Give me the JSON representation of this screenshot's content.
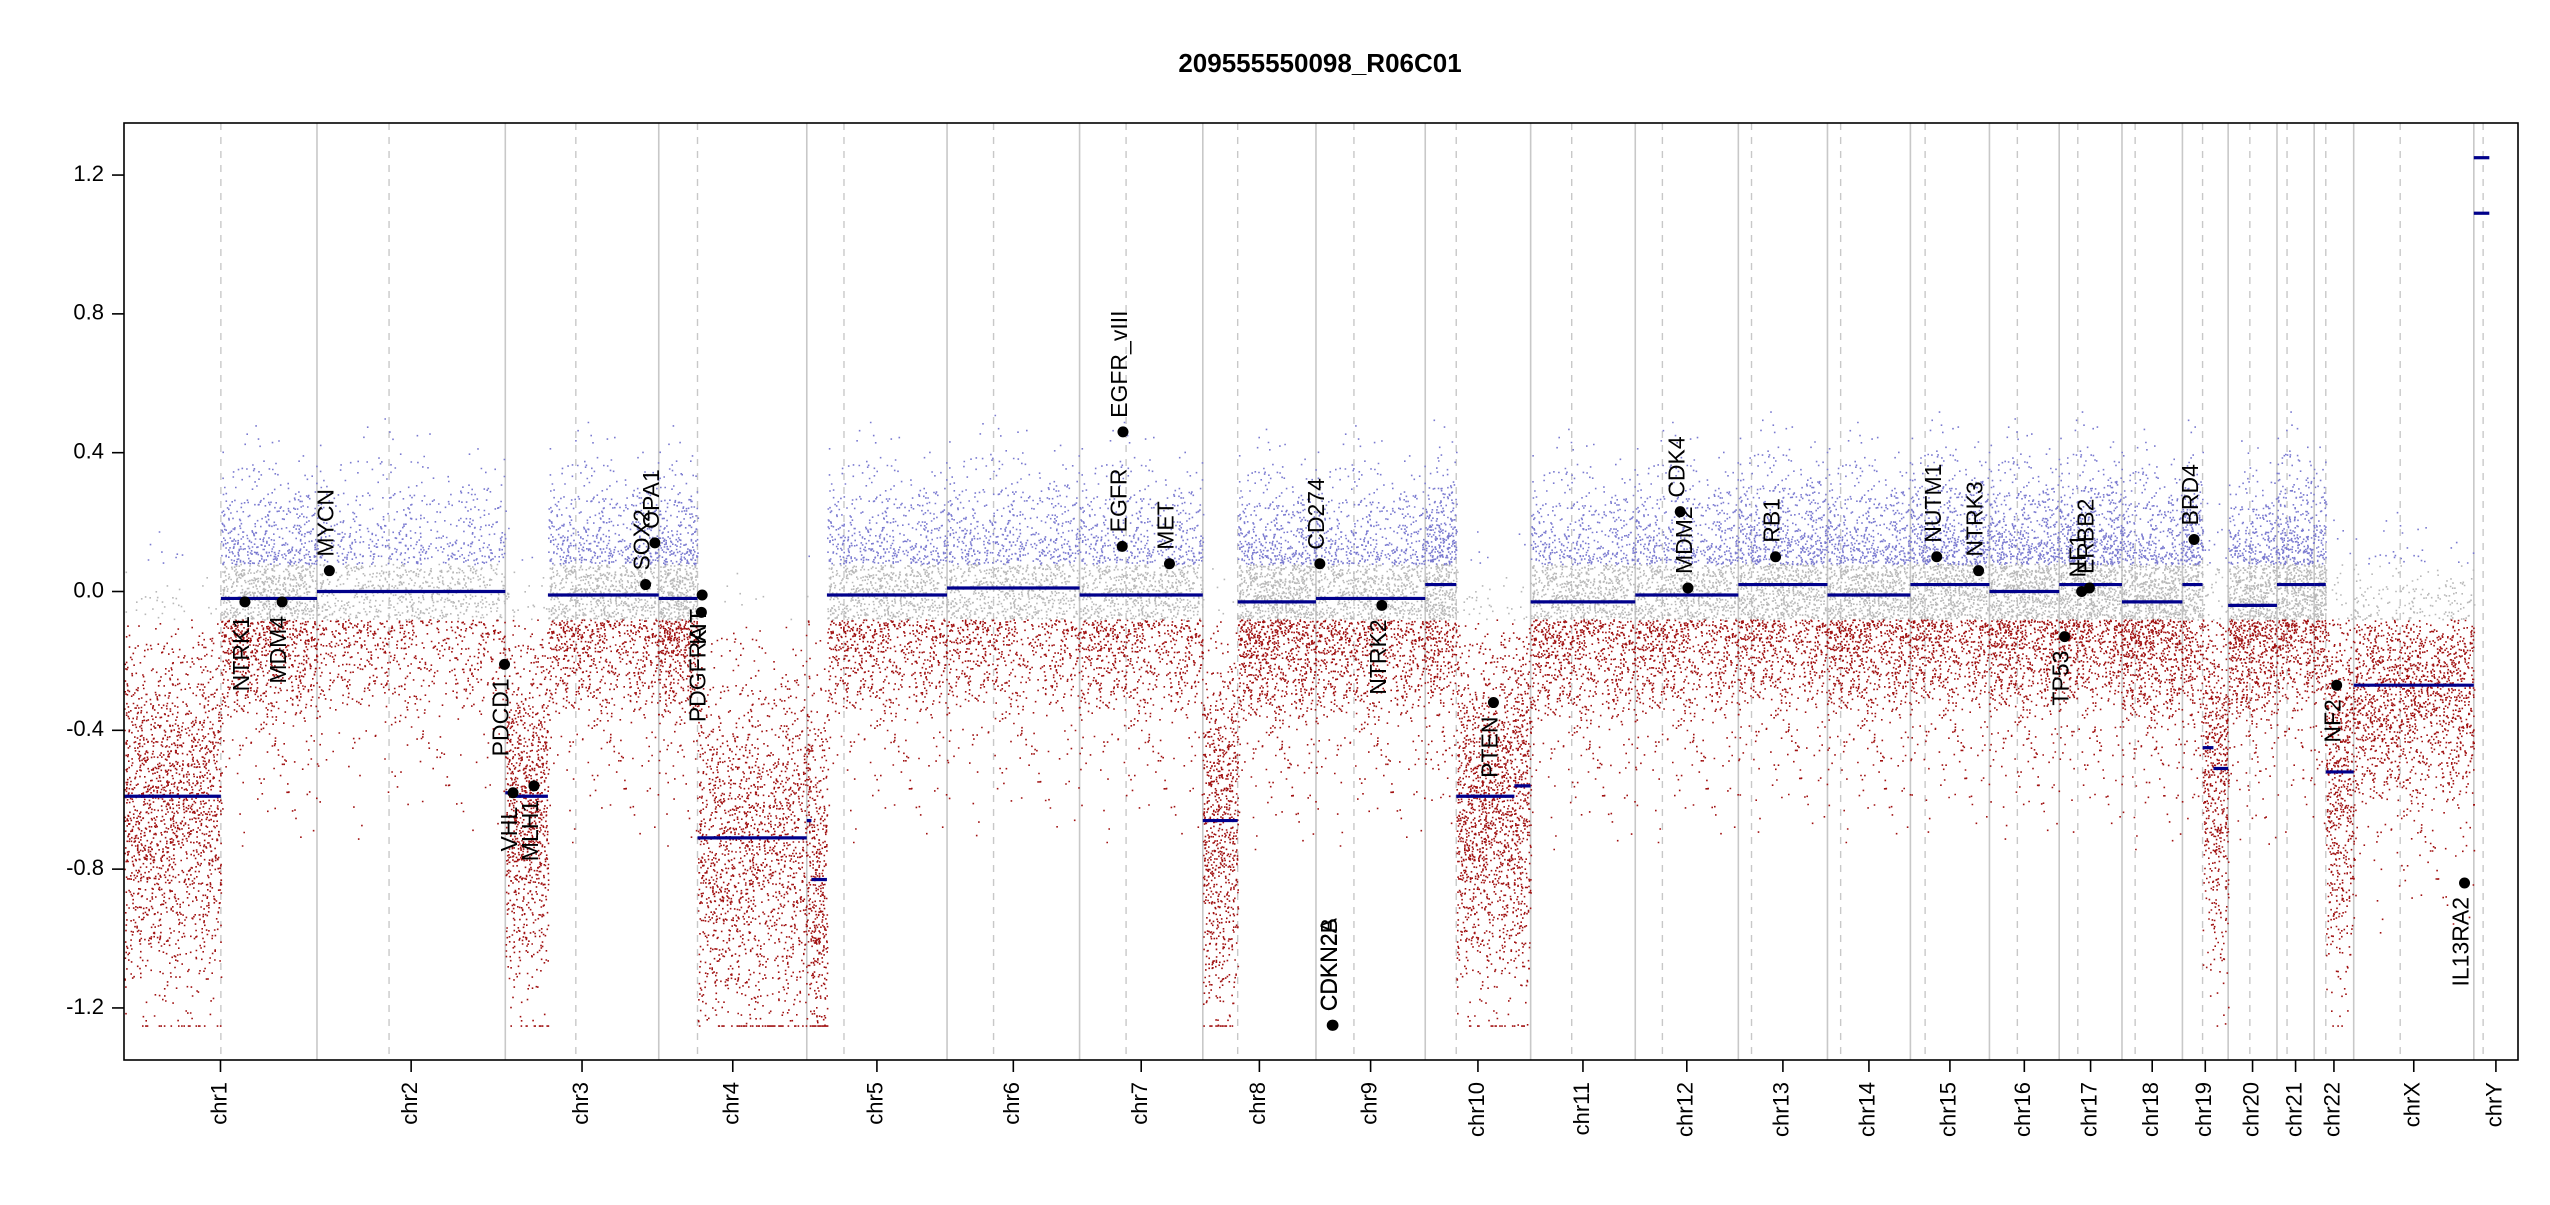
{
  "chart_data": {
    "type": "scatter",
    "title": "209555550098_R06C01",
    "xlabel": "",
    "ylabel": "",
    "ylim": [
      -1.35,
      1.35
    ],
    "yticks": [
      "1.2",
      "0.8",
      "0.4",
      "0.0",
      "-0.4",
      "-0.8",
      "-1.2"
    ],
    "grid": false,
    "legend": "none",
    "colors": {
      "gain_points": "#7a7ad0",
      "neutral_points": "#b8b8b8",
      "loss_points": "#a01010",
      "segment": "#00008b",
      "gene_point": "#000000",
      "chromosome_border": "#c8c8c8",
      "centromere": "#c8c8c8"
    },
    "chromosomes": [
      {
        "name": "chr1",
        "size": 249,
        "cen": 125
      },
      {
        "name": "chr2",
        "size": 243,
        "cen": 93
      },
      {
        "name": "chr3",
        "size": 198,
        "cen": 91
      },
      {
        "name": "chr4",
        "size": 191,
        "cen": 50
      },
      {
        "name": "chr5",
        "size": 181,
        "cen": 48
      },
      {
        "name": "chr6",
        "size": 171,
        "cen": 60
      },
      {
        "name": "chr7",
        "size": 159,
        "cen": 60
      },
      {
        "name": "chr8",
        "size": 146,
        "cen": 45
      },
      {
        "name": "chr9",
        "size": 141,
        "cen": 49
      },
      {
        "name": "chr10",
        "size": 136,
        "cen": 40
      },
      {
        "name": "chr11",
        "size": 135,
        "cen": 53
      },
      {
        "name": "chr12",
        "size": 133,
        "cen": 35
      },
      {
        "name": "chr13",
        "size": 115,
        "cen": 17
      },
      {
        "name": "chr14",
        "size": 107,
        "cen": 17
      },
      {
        "name": "chr15",
        "size": 102,
        "cen": 19
      },
      {
        "name": "chr16",
        "size": 90,
        "cen": 36
      },
      {
        "name": "chr17",
        "size": 81,
        "cen": 24
      },
      {
        "name": "chr18",
        "size": 78,
        "cen": 17
      },
      {
        "name": "chr19",
        "size": 59,
        "cen": 26
      },
      {
        "name": "chr20",
        "size": 63,
        "cen": 28
      },
      {
        "name": "chr21",
        "size": 48,
        "cen": 13
      },
      {
        "name": "chr22",
        "size": 51,
        "cen": 15
      },
      {
        "name": "chrX",
        "size": 155,
        "cen": 60
      },
      {
        "name": "chrY",
        "size": 57,
        "cen": 12
      }
    ],
    "segments": [
      {
        "chr": "chr1",
        "start": 0,
        "end": 125,
        "value": -0.59
      },
      {
        "chr": "chr1",
        "start": 125,
        "end": 249,
        "value": -0.02
      },
      {
        "chr": "chr2",
        "start": 0,
        "end": 243,
        "value": 0.0
      },
      {
        "chr": "chr3",
        "start": 0,
        "end": 10,
        "value": -0.58
      },
      {
        "chr": "chr3",
        "start": 10,
        "end": 55,
        "value": -0.59
      },
      {
        "chr": "chr3",
        "start": 55,
        "end": 198,
        "value": -0.01
      },
      {
        "chr": "chr4",
        "start": 0,
        "end": 50,
        "value": -0.02
      },
      {
        "chr": "chr4",
        "start": 50,
        "end": 191,
        "value": -0.71
      },
      {
        "chr": "chr5",
        "start": 0,
        "end": 6,
        "value": -0.66
      },
      {
        "chr": "chr5",
        "start": 6,
        "end": 26,
        "value": -0.83
      },
      {
        "chr": "chr5",
        "start": 26,
        "end": 181,
        "value": -0.01
      },
      {
        "chr": "chr6",
        "start": 0,
        "end": 171,
        "value": 0.01
      },
      {
        "chr": "chr7",
        "start": 0,
        "end": 159,
        "value": -0.01
      },
      {
        "chr": "chr8",
        "start": 0,
        "end": 45,
        "value": -0.66
      },
      {
        "chr": "chr8",
        "start": 45,
        "end": 146,
        "value": -0.03
      },
      {
        "chr": "chr9",
        "start": 0,
        "end": 141,
        "value": -0.02
      },
      {
        "chr": "chr10",
        "start": 0,
        "end": 40,
        "value": 0.02
      },
      {
        "chr": "chr10",
        "start": 40,
        "end": 115,
        "value": -0.59
      },
      {
        "chr": "chr10",
        "start": 115,
        "end": 136,
        "value": -0.56
      },
      {
        "chr": "chr11",
        "start": 0,
        "end": 135,
        "value": -0.03
      },
      {
        "chr": "chr12",
        "start": 0,
        "end": 133,
        "value": -0.01
      },
      {
        "chr": "chr13",
        "start": 0,
        "end": 115,
        "value": 0.02
      },
      {
        "chr": "chr14",
        "start": 0,
        "end": 107,
        "value": -0.01
      },
      {
        "chr": "chr15",
        "start": 0,
        "end": 102,
        "value": 0.02
      },
      {
        "chr": "chr16",
        "start": 0,
        "end": 90,
        "value": 0.0
      },
      {
        "chr": "chr17",
        "start": 0,
        "end": 81,
        "value": 0.02
      },
      {
        "chr": "chr18",
        "start": 0,
        "end": 78,
        "value": -0.03
      },
      {
        "chr": "chr19",
        "start": 0,
        "end": 26,
        "value": 0.02
      },
      {
        "chr": "chr19",
        "start": 26,
        "end": 40,
        "value": -0.45
      },
      {
        "chr": "chr19",
        "start": 40,
        "end": 59,
        "value": -0.51
      },
      {
        "chr": "chr20",
        "start": 0,
        "end": 63,
        "value": -0.04
      },
      {
        "chr": "chr21",
        "start": 0,
        "end": 48,
        "value": 0.02
      },
      {
        "chr": "chr22",
        "start": 0,
        "end": 15,
        "value": 0.02
      },
      {
        "chr": "chr22",
        "start": 15,
        "end": 51,
        "value": -0.52
      },
      {
        "chr": "chrX",
        "start": 0,
        "end": 155,
        "value": -0.27
      },
      {
        "chr": "chrY",
        "start": 0,
        "end": 20,
        "value": 1.25
      },
      {
        "chr": "chrY",
        "start": 0,
        "end": 20,
        "value": 1.09
      }
    ],
    "genes": [
      {
        "name": "NTRK1",
        "chr": "chr1",
        "pos": 156,
        "value": -0.03,
        "side": "below"
      },
      {
        "name": "MDM4",
        "chr": "chr1",
        "pos": 204,
        "value": -0.03,
        "side": "below"
      },
      {
        "name": "MYCN",
        "chr": "chr2",
        "pos": 16,
        "value": 0.06,
        "side": "above"
      },
      {
        "name": "PDCD1",
        "chr": "chr2",
        "pos": 242,
        "value": -0.21,
        "side": "below"
      },
      {
        "name": "VHL",
        "chr": "chr3",
        "pos": 10,
        "value": -0.58,
        "side": "below"
      },
      {
        "name": "MLH1",
        "chr": "chr3",
        "pos": 37,
        "value": -0.56,
        "side": "below"
      },
      {
        "name": "SOX2",
        "chr": "chr3",
        "pos": 181,
        "value": 0.02,
        "side": "above"
      },
      {
        "name": "OPA1",
        "chr": "chr3",
        "pos": 193,
        "value": 0.14,
        "side": "above"
      },
      {
        "name": "PDGFRA",
        "chr": "chr4",
        "pos": 55,
        "value": -0.06,
        "side": "below"
      },
      {
        "name": "KIT",
        "chr": "chr4",
        "pos": 56,
        "value": -0.01,
        "side": "below"
      },
      {
        "name": "EGFR",
        "chr": "chr7",
        "pos": 55,
        "value": 0.13,
        "side": "above"
      },
      {
        "name": "EGFR_vIII",
        "chr": "chr7",
        "pos": 56,
        "value": 0.46,
        "side": "above"
      },
      {
        "name": "MET",
        "chr": "chr7",
        "pos": 116,
        "value": 0.08,
        "side": "above"
      },
      {
        "name": "CD274",
        "chr": "chr9",
        "pos": 5,
        "value": 0.08,
        "side": "above"
      },
      {
        "name": "CDKN2A",
        "chr": "chr9",
        "pos": 21,
        "value": -1.25,
        "side": "above"
      },
      {
        "name": "CDKN2B",
        "chr": "chr9",
        "pos": 22,
        "value": -1.25,
        "side": "above"
      },
      {
        "name": "NTRK2",
        "chr": "chr9",
        "pos": 85,
        "value": -0.04,
        "side": "below"
      },
      {
        "name": "PTEN",
        "chr": "chr10",
        "pos": 88,
        "value": -0.32,
        "side": "below"
      },
      {
        "name": "MDM2",
        "chr": "chr12",
        "pos": 68,
        "value": 0.01,
        "side": "above"
      },
      {
        "name": "CDK4",
        "chr": "chr12",
        "pos": 58,
        "value": 0.23,
        "side": "above"
      },
      {
        "name": "RB1",
        "chr": "chr13",
        "pos": 48,
        "value": 0.1,
        "side": "above"
      },
      {
        "name": "NUTM1",
        "chr": "chr15",
        "pos": 34,
        "value": 0.1,
        "side": "above"
      },
      {
        "name": "NTRK3",
        "chr": "chr15",
        "pos": 88,
        "value": 0.06,
        "side": "above"
      },
      {
        "name": "TP53",
        "chr": "chr17",
        "pos": 7,
        "value": -0.13,
        "side": "below"
      },
      {
        "name": "NF1",
        "chr": "chr17",
        "pos": 29,
        "value": 0.0,
        "side": "above"
      },
      {
        "name": "ERBB2",
        "chr": "chr17",
        "pos": 39,
        "value": 0.01,
        "side": "above"
      },
      {
        "name": "BRD4",
        "chr": "chr19",
        "pos": 15,
        "value": 0.15,
        "side": "above"
      },
      {
        "name": "NF2",
        "chr": "chr22",
        "pos": 29,
        "value": -0.27,
        "side": "below"
      },
      {
        "name": "IL13RA2",
        "chr": "chrX",
        "pos": 143,
        "value": -0.84,
        "side": "below"
      }
    ]
  }
}
